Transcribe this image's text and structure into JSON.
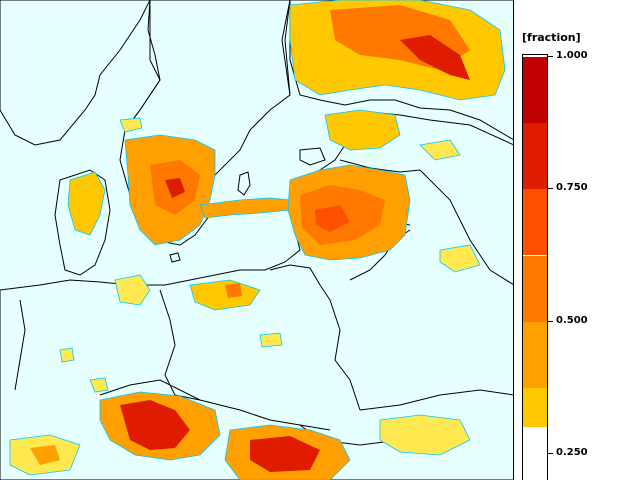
{
  "legend": {
    "unit": "[fraction]",
    "labels": [
      "1.000",
      "0.750",
      "0.500",
      "0.250"
    ],
    "label_values": [
      1.0,
      0.75,
      0.5,
      0.25
    ],
    "colors": [
      "#c00000",
      "#e01c00",
      "#ff5000",
      "#ff7800",
      "#ffa000",
      "#ffc800",
      "#ffe850",
      "#ffff96"
    ]
  },
  "map": {
    "sea_color": "#e6ffff",
    "land_color": "#e6ffff",
    "border_color": "#000000",
    "coast_color": "#000000",
    "contour_color": "#00c8ff"
  }
}
